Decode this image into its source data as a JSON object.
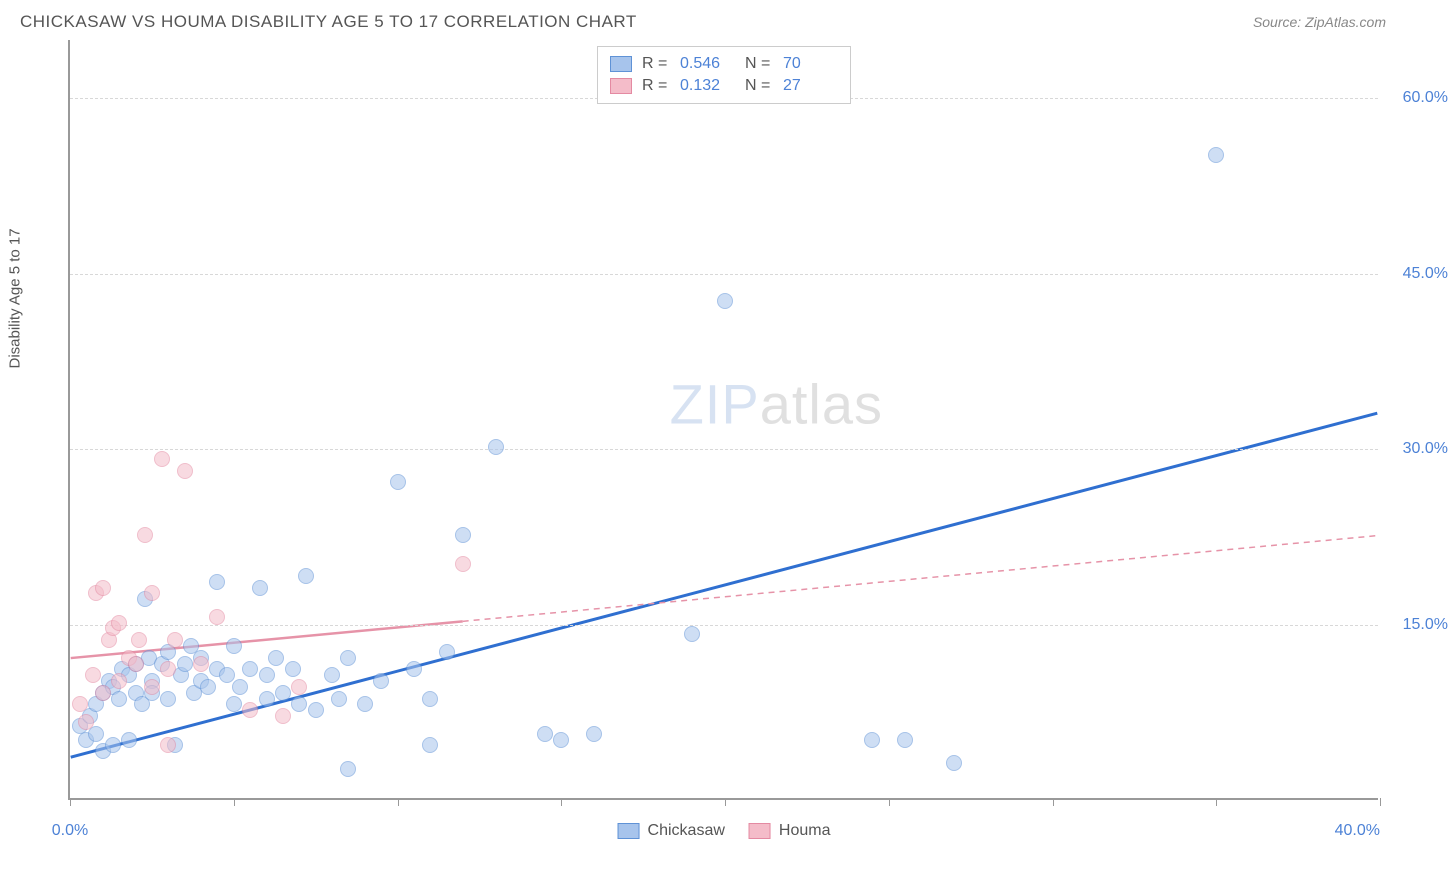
{
  "title": "CHICKASAW VS HOUMA DISABILITY AGE 5 TO 17 CORRELATION CHART",
  "source": "Source: ZipAtlas.com",
  "ylabel": "Disability Age 5 to 17",
  "watermark_a": "ZIP",
  "watermark_b": "atlas",
  "chart": {
    "type": "scatter",
    "xlim": [
      0,
      40
    ],
    "ylim": [
      0,
      65
    ],
    "yticks": [
      15,
      30,
      45,
      60
    ],
    "ytick_labels": [
      "15.0%",
      "30.0%",
      "45.0%",
      "60.0%"
    ],
    "xtick_positions": [
      0,
      5,
      10,
      15,
      20,
      25,
      30,
      35,
      40
    ],
    "xaxis_end_labels": {
      "left": "0.0%",
      "right": "40.0%"
    },
    "background_color": "#ffffff",
    "grid_color": "#d8d8d8",
    "point_radius": 8,
    "point_opacity": 0.55,
    "series": [
      {
        "name": "Chickasaw",
        "color_fill": "#a7c4ec",
        "color_stroke": "#5f92d6",
        "trend_color": "#2f6fd0",
        "trend_width": 3,
        "trend_dash": "none",
        "trend_y0": 3.5,
        "trend_y40": 33.0,
        "trend_x_extent": [
          0,
          40
        ],
        "R": "0.546",
        "N": "70",
        "points": [
          [
            0.3,
            6.2
          ],
          [
            0.5,
            5.0
          ],
          [
            0.6,
            7.0
          ],
          [
            0.8,
            5.5
          ],
          [
            0.8,
            8.0
          ],
          [
            1.0,
            9.0
          ],
          [
            1.0,
            4.0
          ],
          [
            1.2,
            10.0
          ],
          [
            1.3,
            4.5
          ],
          [
            1.3,
            9.5
          ],
          [
            1.5,
            8.5
          ],
          [
            1.6,
            11.0
          ],
          [
            1.8,
            5.0
          ],
          [
            1.8,
            10.5
          ],
          [
            2.0,
            11.5
          ],
          [
            2.0,
            9.0
          ],
          [
            2.2,
            8.0
          ],
          [
            2.3,
            17.0
          ],
          [
            2.4,
            12.0
          ],
          [
            2.5,
            10.0
          ],
          [
            2.5,
            9.0
          ],
          [
            2.8,
            11.5
          ],
          [
            3.0,
            8.5
          ],
          [
            3.0,
            12.5
          ],
          [
            3.2,
            4.5
          ],
          [
            3.4,
            10.5
          ],
          [
            3.5,
            11.5
          ],
          [
            3.7,
            13.0
          ],
          [
            3.8,
            9.0
          ],
          [
            4.0,
            10.0
          ],
          [
            4.0,
            12.0
          ],
          [
            4.2,
            9.5
          ],
          [
            4.5,
            18.5
          ],
          [
            4.5,
            11.0
          ],
          [
            4.8,
            10.5
          ],
          [
            5.0,
            8.0
          ],
          [
            5.0,
            13.0
          ],
          [
            5.2,
            9.5
          ],
          [
            5.5,
            11.0
          ],
          [
            5.8,
            18.0
          ],
          [
            6.0,
            10.5
          ],
          [
            6.0,
            8.5
          ],
          [
            6.3,
            12.0
          ],
          [
            6.5,
            9.0
          ],
          [
            6.8,
            11.0
          ],
          [
            7.0,
            8.0
          ],
          [
            7.2,
            19.0
          ],
          [
            7.5,
            7.5
          ],
          [
            8.0,
            10.5
          ],
          [
            8.2,
            8.5
          ],
          [
            8.5,
            12.0
          ],
          [
            8.5,
            2.5
          ],
          [
            9.0,
            8.0
          ],
          [
            9.5,
            10.0
          ],
          [
            10.0,
            27.0
          ],
          [
            10.5,
            11.0
          ],
          [
            11.0,
            4.5
          ],
          [
            11.0,
            8.5
          ],
          [
            11.5,
            12.5
          ],
          [
            12.0,
            22.5
          ],
          [
            13.0,
            30.0
          ],
          [
            14.5,
            5.5
          ],
          [
            15.0,
            5.0
          ],
          [
            16.0,
            5.5
          ],
          [
            19.0,
            14.0
          ],
          [
            20.0,
            42.5
          ],
          [
            24.5,
            5.0
          ],
          [
            25.5,
            5.0
          ],
          [
            27.0,
            3.0
          ],
          [
            35.0,
            55.0
          ]
        ]
      },
      {
        "name": "Houma",
        "color_fill": "#f4bcc9",
        "color_stroke": "#e48aa2",
        "trend_color": "#e693a8",
        "trend_width": 2.5,
        "trend_dash": "6,5",
        "trend_y0": 12.0,
        "trend_y40": 22.5,
        "trend_x_extent": [
          0,
          40
        ],
        "trend_solid_until": 12,
        "R": "0.132",
        "N": "27",
        "points": [
          [
            0.3,
            8.0
          ],
          [
            0.5,
            6.5
          ],
          [
            0.7,
            10.5
          ],
          [
            0.8,
            17.5
          ],
          [
            1.0,
            18.0
          ],
          [
            1.0,
            9.0
          ],
          [
            1.2,
            13.5
          ],
          [
            1.3,
            14.5
          ],
          [
            1.5,
            10.0
          ],
          [
            1.5,
            15.0
          ],
          [
            1.8,
            12.0
          ],
          [
            2.0,
            11.5
          ],
          [
            2.1,
            13.5
          ],
          [
            2.3,
            22.5
          ],
          [
            2.5,
            9.5
          ],
          [
            2.5,
            17.5
          ],
          [
            2.8,
            29.0
          ],
          [
            3.0,
            11.0
          ],
          [
            3.0,
            4.5
          ],
          [
            3.2,
            13.5
          ],
          [
            3.5,
            28.0
          ],
          [
            4.0,
            11.5
          ],
          [
            4.5,
            15.5
          ],
          [
            5.5,
            7.5
          ],
          [
            6.5,
            7.0
          ],
          [
            7.0,
            9.5
          ],
          [
            12.0,
            20.0
          ]
        ]
      }
    ]
  },
  "legend_top": {
    "rows": [
      {
        "sw_fill": "#a7c4ec",
        "sw_stroke": "#5f92d6",
        "r_label": "R =",
        "r_val": "0.546",
        "n_label": "N =",
        "n_val": "70"
      },
      {
        "sw_fill": "#f4bcc9",
        "sw_stroke": "#e48aa2",
        "r_label": "R =",
        "r_val": "0.132",
        "n_label": "N =",
        "n_val": "27"
      }
    ]
  },
  "legend_bottom": [
    {
      "sw_fill": "#a7c4ec",
      "sw_stroke": "#5f92d6",
      "label": "Chickasaw"
    },
    {
      "sw_fill": "#f4bcc9",
      "sw_stroke": "#e48aa2",
      "label": "Houma"
    }
  ]
}
